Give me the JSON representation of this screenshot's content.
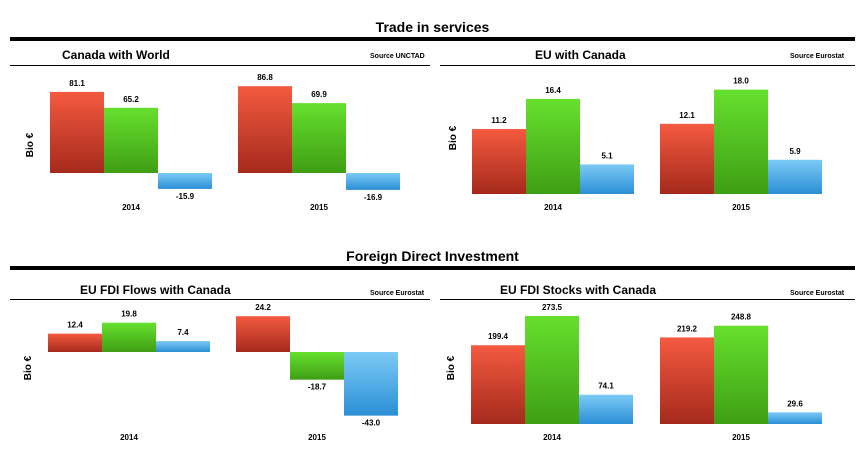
{
  "sections": [
    {
      "title": "Trade in services"
    },
    {
      "title": "Foreign Direct Investment"
    }
  ],
  "colors": {
    "red_top": "#f45a40",
    "red_bottom": "#a52a1c",
    "green_top": "#66e02e",
    "green_bottom": "#3f9e14",
    "blue_top": "#7ccaf5",
    "blue_bottom": "#2b8fd6"
  },
  "chart_data": [
    {
      "type": "bar",
      "title": "Canada with World",
      "source": "Source UNCTAD",
      "ylabel": "Bio €",
      "categories": [
        "2014",
        "2015"
      ],
      "series": [
        {
          "values": [
            81.1,
            86.8
          ]
        },
        {
          "values": [
            65.2,
            69.9
          ]
        },
        {
          "values": [
            -15.9,
            -16.9
          ]
        }
      ],
      "value_labels": [
        [
          "81.1",
          "65.2",
          "-15.9"
        ],
        [
          "86.8",
          "69.9",
          "-16.9"
        ]
      ]
    },
    {
      "type": "bar",
      "title": "EU with Canada",
      "source": "Source Eurostat",
      "ylabel": "Bio €",
      "categories": [
        "2014",
        "2015"
      ],
      "series": [
        {
          "values": [
            11.2,
            12.1
          ]
        },
        {
          "values": [
            16.4,
            18.0
          ]
        },
        {
          "values": [
            5.1,
            5.9
          ]
        }
      ],
      "value_labels": [
        [
          "11.2",
          "16.4",
          "5.1"
        ],
        [
          "12.1",
          "18.0",
          "5.9"
        ]
      ]
    },
    {
      "type": "bar",
      "title": "EU FDI Flows with Canada",
      "source": "Source Eurostat",
      "ylabel": "Bio €",
      "categories": [
        "2014",
        "2015"
      ],
      "series": [
        {
          "values": [
            12.4,
            24.2
          ]
        },
        {
          "values": [
            19.8,
            -18.7
          ]
        },
        {
          "values": [
            7.4,
            -43.0
          ]
        }
      ],
      "value_labels": [
        [
          "12.4",
          "19.8",
          "7.4"
        ],
        [
          "24.2",
          "-18.7",
          "-43.0"
        ]
      ]
    },
    {
      "type": "bar",
      "title": "EU FDI Stocks with Canada",
      "source": "Source Eurostat",
      "ylabel": "Bio €",
      "categories": [
        "2014",
        "2015"
      ],
      "series": [
        {
          "values": [
            199.4,
            219.2
          ]
        },
        {
          "values": [
            273.5,
            248.8
          ]
        },
        {
          "values": [
            74.1,
            29.6
          ]
        }
      ],
      "value_labels": [
        [
          "199.4",
          "273.5",
          "74.1"
        ],
        [
          "219.2",
          "248.8",
          "29.6"
        ]
      ]
    }
  ]
}
